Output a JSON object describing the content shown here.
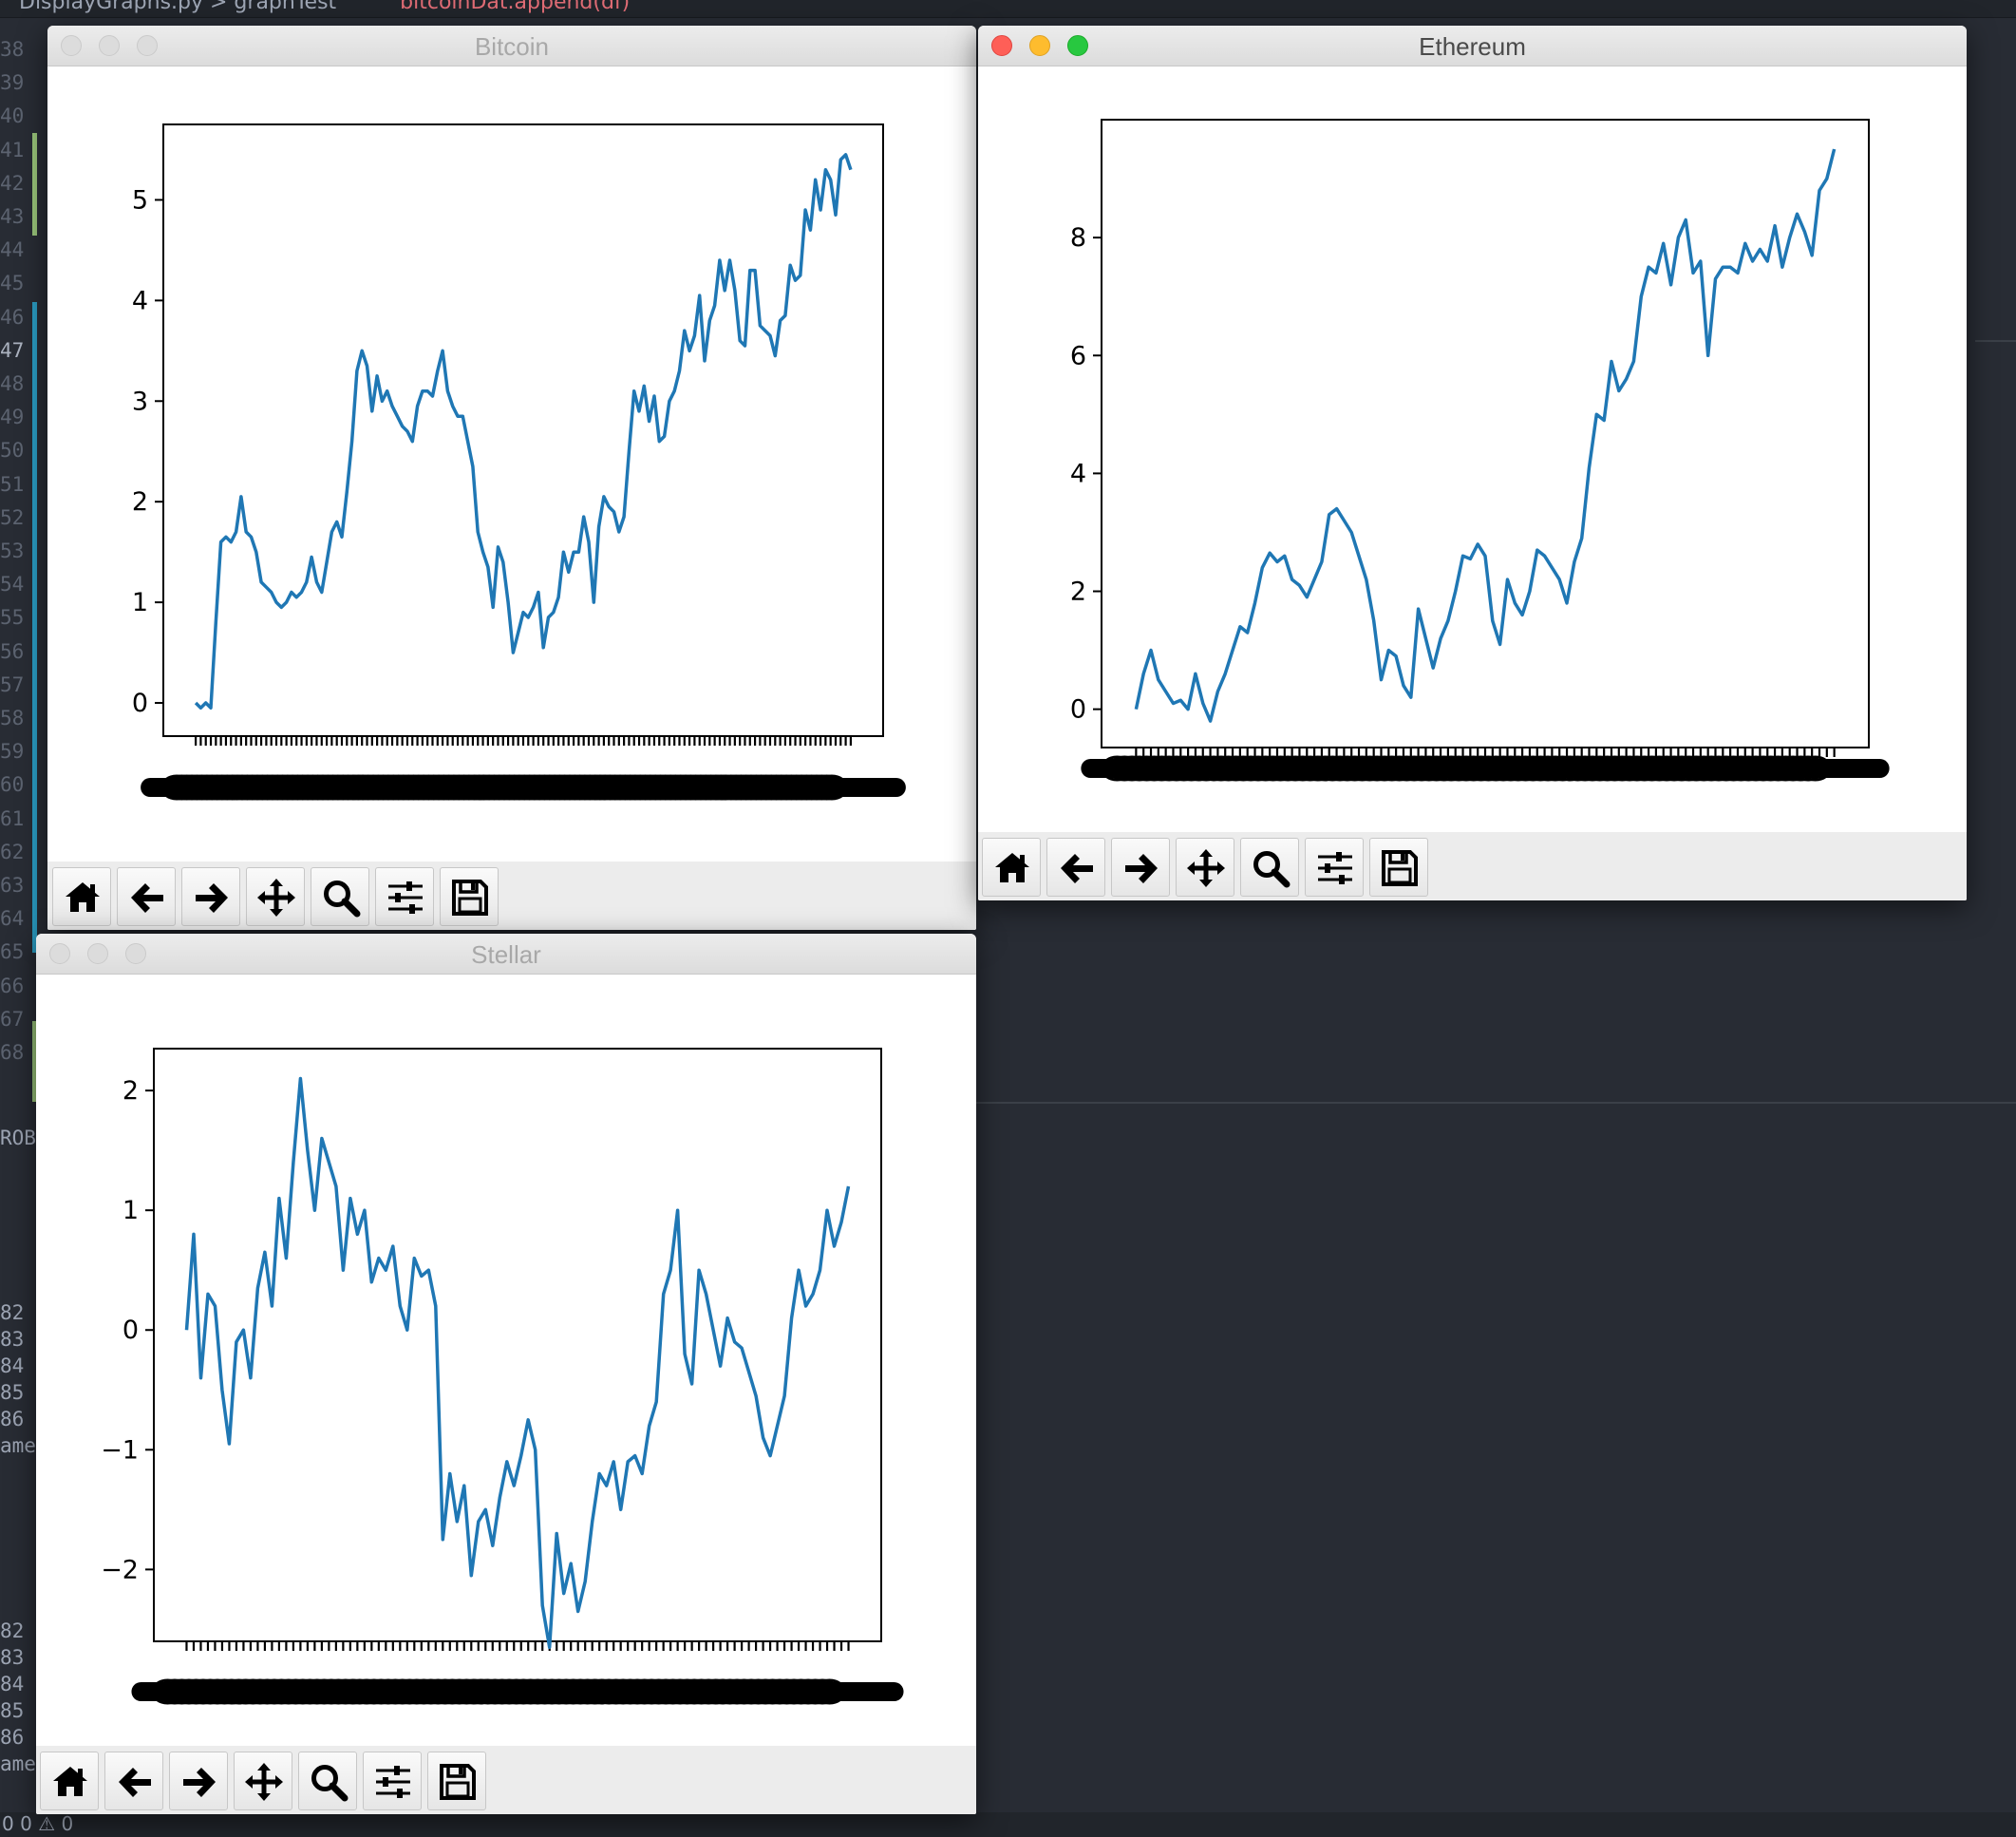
{
  "editor": {
    "breadcrumb": "DisplayGraphs.py  >  graphTest",
    "code_fragment": "bitcoinDat.append(df)",
    "line_numbers_top": [
      "38",
      "39",
      "40",
      "41",
      "42",
      "43",
      "44",
      "45",
      "46",
      "47",
      "48",
      "49",
      "50",
      "51",
      "52",
      "53",
      "54",
      "55",
      "56",
      "57",
      "58",
      "59",
      "60",
      "61",
      "62",
      "63",
      "64",
      "65",
      "66",
      "67",
      "68"
    ],
    "panel_label": "ROB",
    "terminal_lines_1": [
      "82",
      "83",
      "84",
      "85",
      "86",
      "ame"
    ],
    "terminal_lines_2": [
      "82",
      "83",
      "84",
      "85",
      "86",
      "ame"
    ],
    "status": "0 0 ⚠ 0",
    "colors": {
      "background": "#282c34",
      "gutter_text": "#5c6370",
      "git_green": "#98c379",
      "git_blue": "#2a9bc1"
    }
  },
  "windows": [
    {
      "id": "bitcoin",
      "title": "Bitcoin",
      "active": false
    },
    {
      "id": "ethereum",
      "title": "Ethereum",
      "active": true
    },
    {
      "id": "stellar",
      "title": "Stellar",
      "active": false
    }
  ],
  "toolbar": {
    "buttons": [
      {
        "name": "home-icon",
        "label": "Home"
      },
      {
        "name": "back-arrow-icon",
        "label": "Back"
      },
      {
        "name": "forward-arrow-icon",
        "label": "Forward"
      },
      {
        "name": "pan-icon",
        "label": "Pan"
      },
      {
        "name": "zoom-icon",
        "label": "Zoom"
      },
      {
        "name": "configure-subplots-icon",
        "label": "Configure subplots"
      },
      {
        "name": "save-icon",
        "label": "Save"
      }
    ]
  },
  "chart_data": [
    {
      "type": "line",
      "window": "Bitcoin",
      "title": "",
      "xlabel": "",
      "ylabel": "",
      "ylim": [
        -0.33,
        5.75
      ],
      "yticks": [
        0,
        1,
        2,
        3,
        4,
        5
      ],
      "color": "#1f77b4",
      "grid": false,
      "x_tick_labels_overlapping": true,
      "series": [
        {
          "values": [
            0.0,
            -0.05,
            0.0,
            -0.05,
            0.8,
            1.6,
            1.65,
            1.6,
            1.7,
            2.05,
            1.7,
            1.65,
            1.5,
            1.2,
            1.15,
            1.1,
            1.0,
            0.95,
            1.0,
            1.1,
            1.05,
            1.1,
            1.2,
            1.45,
            1.2,
            1.1,
            1.4,
            1.7,
            1.8,
            1.65,
            2.1,
            2.6,
            3.3,
            3.5,
            3.35,
            2.9,
            3.25,
            3.0,
            3.1,
            2.95,
            2.85,
            2.75,
            2.7,
            2.6,
            2.95,
            3.1,
            3.1,
            3.05,
            3.3,
            3.5,
            3.1,
            2.95,
            2.85,
            2.85,
            2.6,
            2.35,
            1.7,
            1.5,
            1.35,
            0.95,
            1.55,
            1.4,
            1.0,
            0.5,
            0.7,
            0.9,
            0.85,
            0.95,
            1.1,
            0.55,
            0.85,
            0.9,
            1.05,
            1.5,
            1.3,
            1.5,
            1.5,
            1.85,
            1.6,
            1.0,
            1.75,
            2.05,
            1.95,
            1.9,
            1.7,
            1.85,
            2.5,
            3.1,
            2.9,
            3.15,
            2.8,
            3.05,
            2.6,
            2.65,
            3.0,
            3.1,
            3.3,
            3.7,
            3.5,
            3.65,
            4.05,
            3.4,
            3.8,
            3.95,
            4.4,
            4.1,
            4.4,
            4.1,
            3.6,
            3.55,
            4.3,
            4.3,
            3.75,
            3.7,
            3.65,
            3.45,
            3.8,
            3.85,
            4.35,
            4.2,
            4.25,
            4.9,
            4.7,
            5.2,
            4.9,
            5.3,
            5.2,
            4.85,
            5.4,
            5.45,
            5.3
          ]
        }
      ]
    },
    {
      "type": "line",
      "window": "Ethereum",
      "title": "",
      "xlabel": "",
      "ylabel": "",
      "ylim": [
        -0.65,
        10.0
      ],
      "yticks": [
        0,
        2,
        4,
        6,
        8
      ],
      "color": "#1f77b4",
      "grid": false,
      "x_tick_labels_overlapping": true,
      "series": [
        {
          "values": [
            0.0,
            0.6,
            1.0,
            0.5,
            0.3,
            0.1,
            0.15,
            0.0,
            0.6,
            0.1,
            -0.2,
            0.3,
            0.6,
            1.0,
            1.4,
            1.3,
            1.8,
            2.4,
            2.65,
            2.5,
            2.6,
            2.2,
            2.1,
            1.9,
            2.2,
            2.5,
            3.3,
            3.4,
            3.2,
            3.0,
            2.6,
            2.2,
            1.5,
            0.5,
            1.0,
            0.9,
            0.4,
            0.2,
            1.7,
            1.2,
            0.7,
            1.2,
            1.5,
            2.0,
            2.6,
            2.55,
            2.8,
            2.6,
            1.5,
            1.1,
            2.2,
            1.8,
            1.6,
            2.0,
            2.7,
            2.6,
            2.4,
            2.2,
            1.8,
            2.5,
            2.9,
            4.1,
            5.0,
            4.9,
            5.9,
            5.4,
            5.6,
            5.9,
            7.0,
            7.5,
            7.4,
            7.9,
            7.2,
            8.0,
            8.3,
            7.4,
            7.6,
            6.0,
            7.3,
            7.5,
            7.5,
            7.4,
            7.9,
            7.6,
            7.8,
            7.6,
            8.2,
            7.5,
            8.0,
            8.4,
            8.1,
            7.7,
            8.8,
            9.0,
            9.5
          ]
        }
      ]
    },
    {
      "type": "line",
      "window": "Stellar",
      "title": "",
      "xlabel": "",
      "ylabel": "",
      "ylim": [
        -2.6,
        2.35
      ],
      "yticks": [
        -2,
        -1,
        0,
        1,
        2
      ],
      "color": "#1f77b4",
      "grid": false,
      "x_tick_labels_overlapping": true,
      "series": [
        {
          "values": [
            0.0,
            0.8,
            -0.4,
            0.3,
            0.2,
            -0.5,
            -0.95,
            -0.1,
            0.0,
            -0.4,
            0.35,
            0.65,
            0.2,
            1.1,
            0.6,
            1.4,
            2.1,
            1.5,
            1.0,
            1.6,
            1.4,
            1.2,
            0.5,
            1.1,
            0.8,
            1.0,
            0.4,
            0.6,
            0.5,
            0.7,
            0.2,
            0.0,
            0.6,
            0.45,
            0.5,
            0.2,
            -1.75,
            -1.2,
            -1.6,
            -1.3,
            -2.05,
            -1.6,
            -1.5,
            -1.8,
            -1.4,
            -1.1,
            -1.3,
            -1.05,
            -0.75,
            -1.0,
            -2.3,
            -2.65,
            -1.7,
            -2.2,
            -1.95,
            -2.35,
            -2.1,
            -1.6,
            -1.2,
            -1.3,
            -1.1,
            -1.5,
            -1.1,
            -1.05,
            -1.2,
            -0.8,
            -0.6,
            0.3,
            0.5,
            1.0,
            -0.2,
            -0.45,
            0.5,
            0.3,
            0.0,
            -0.3,
            0.1,
            -0.1,
            -0.15,
            -0.35,
            -0.55,
            -0.9,
            -1.05,
            -0.8,
            -0.55,
            0.1,
            0.5,
            0.2,
            0.3,
            0.5,
            1.0,
            0.7,
            0.9,
            1.2
          ]
        }
      ]
    }
  ]
}
